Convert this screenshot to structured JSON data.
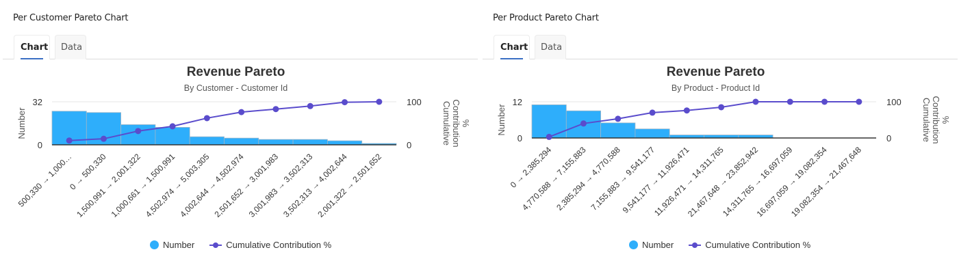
{
  "panels": [
    {
      "title": "Per Customer Pareto Chart",
      "tabs": [
        {
          "label": "Chart",
          "active": true
        },
        {
          "label": "Data",
          "active": false
        }
      ]
    },
    {
      "title": "Per Product Pareto Chart",
      "tabs": [
        {
          "label": "Chart",
          "active": true
        },
        {
          "label": "Data",
          "active": false
        }
      ]
    }
  ],
  "legend": {
    "bar_label": "Number",
    "line_label": "Cumulative Contribution %"
  },
  "colors": {
    "bar": "#2eaefb",
    "bar_border": "#9fb6c8",
    "line": "#5a4ccc",
    "grid": "#e6e6e6",
    "axis": "#333333"
  },
  "chart_data": [
    {
      "type": "bar",
      "title": "Revenue Pareto",
      "subtitle": "By Customer - Customer Id",
      "xlabel": "",
      "ylabel": "Number",
      "y2label": "Cumulative Contribution %",
      "ylim": [
        0,
        32
      ],
      "y2lim": [
        0,
        100
      ],
      "yticks": [
        0,
        32
      ],
      "y2ticks": [
        0,
        100
      ],
      "categories": [
        "500,330 → 1,000…",
        "0 → 500,330",
        "1,500,991 → 2,001,322",
        "1,000,661 → 1,500,991",
        "4,502,974 → 5,003,305",
        "4,002,644 → 4,502,974",
        "2,501,652 → 3,001,983",
        "3,001,983 → 3,502,313",
        "3,502,313 → 4,002,644",
        "2,001,322 → 2,501,652"
      ],
      "series": [
        {
          "name": "Number",
          "type": "bar",
          "axis": "left",
          "values": [
            25,
            24,
            15,
            13,
            6,
            5,
            4,
            4,
            3,
            1
          ]
        },
        {
          "name": "Cumulative Contribution %",
          "type": "line",
          "axis": "right",
          "values": [
            10,
            14,
            32,
            43,
            62,
            76,
            83,
            90,
            99,
            100
          ]
        }
      ],
      "grid": true,
      "legend_position": "bottom"
    },
    {
      "type": "bar",
      "title": "Revenue Pareto",
      "subtitle": "By Product - Product Id",
      "xlabel": "",
      "ylabel": "Number",
      "y2label": "Cumulative Contribution %",
      "ylim": [
        0,
        12
      ],
      "y2lim": [
        0,
        100
      ],
      "yticks": [
        0,
        12
      ],
      "y2ticks": [
        0,
        100
      ],
      "categories": [
        "0 → 2,385,294",
        "4,770,588 → 7,155,883",
        "2,385,294 → 4,770,588",
        "7,155,883 → 9,541,177",
        "9,541,177 → 11,926,471",
        "11,926,471 → 14,311,765",
        "21,467,648 → 23,852,942",
        "14,311,765 → 16,697,059",
        "16,697,059 → 19,082,354",
        "19,082,354 → 21,467,648"
      ],
      "series": [
        {
          "name": "Number",
          "type": "bar",
          "axis": "left",
          "values": [
            11,
            9,
            5,
            3,
            1,
            1,
            1,
            0,
            0,
            0
          ]
        },
        {
          "name": "Cumulative Contribution %",
          "type": "line",
          "axis": "right",
          "values": [
            3,
            40,
            53,
            70,
            76,
            85,
            100,
            100,
            100,
            100
          ]
        }
      ],
      "grid": true,
      "legend_position": "bottom"
    }
  ]
}
